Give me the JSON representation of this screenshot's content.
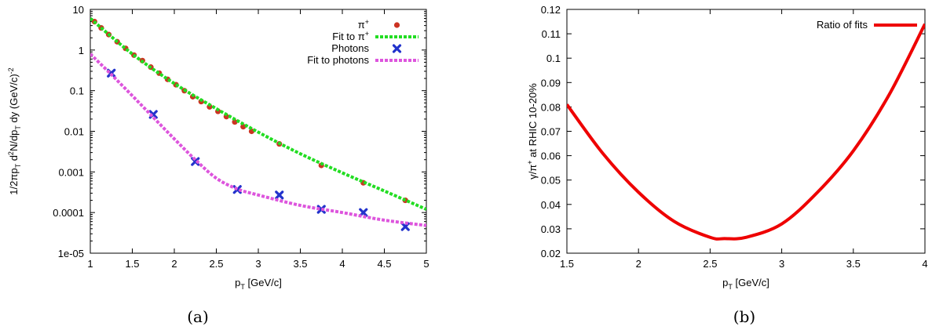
{
  "chart_data": [
    {
      "type": "scatter",
      "caption": "(a)",
      "xlabel": "p_T [GeV/c]",
      "ylabel": "1/2πp_T d^2N/dp_T dy (GeV/c)^-2",
      "xlim": [
        1,
        5
      ],
      "ylim": [
        1e-05,
        10
      ],
      "ylog": true,
      "grid": false,
      "legend_position": "top-right",
      "xticks": [
        1,
        1.5,
        2,
        2.5,
        3,
        3.5,
        4,
        4.5,
        5
      ],
      "xtick_labels": [
        "1",
        "1.5",
        "2",
        "2.5",
        "3",
        "3.5",
        "4",
        "4.5",
        "5"
      ],
      "yticks": [
        1e-05,
        0.0001,
        0.001,
        0.01,
        0.1,
        1,
        10
      ],
      "ytick_labels": [
        "1e-05",
        "0.0001",
        "0.001",
        "0.01",
        "0.1",
        "1",
        "10"
      ],
      "series": [
        {
          "name": "π+",
          "kind": "points",
          "marker": "circle",
          "color": "#cc3322",
          "x": [
            1.05,
            1.13,
            1.22,
            1.32,
            1.42,
            1.52,
            1.62,
            1.72,
            1.82,
            1.92,
            2.02,
            2.12,
            2.22,
            2.32,
            2.42,
            2.52,
            2.62,
            2.72,
            2.82,
            2.92,
            3.25,
            3.75,
            4.25,
            4.75
          ],
          "y": [
            5.0,
            3.5,
            2.4,
            1.6,
            1.1,
            0.75,
            0.55,
            0.38,
            0.27,
            0.19,
            0.14,
            0.1,
            0.071,
            0.054,
            0.04,
            0.031,
            0.023,
            0.017,
            0.013,
            0.01,
            0.0049,
            0.00145,
            0.00054,
            0.0002
          ]
        },
        {
          "name": "Fit to π+",
          "kind": "line",
          "dash": "dotted",
          "color": "#22dd22",
          "x": [
            1.0,
            1.5,
            2.0,
            2.5,
            3.0,
            3.5,
            4.0,
            4.5,
            5.0
          ],
          "y": [
            6.0,
            0.8,
            0.15,
            0.036,
            0.0095,
            0.0028,
            0.00095,
            0.00034,
            0.00012
          ]
        },
        {
          "name": "Photons",
          "kind": "points",
          "marker": "cross",
          "color": "#2233cc",
          "x": [
            1.25,
            1.75,
            2.25,
            2.75,
            3.25,
            3.75,
            4.25,
            4.75
          ],
          "y": [
            0.27,
            0.026,
            0.0018,
            0.00037,
            0.00027,
            0.00012,
            0.0001,
            4.5e-05
          ]
        },
        {
          "name": "Fit to photons",
          "kind": "line",
          "dash": "dotted",
          "color": "#dd55dd",
          "x": [
            1.0,
            1.25,
            1.5,
            1.75,
            2.0,
            2.25,
            2.5,
            2.75,
            3.0,
            3.5,
            4.0,
            4.5,
            5.0
          ],
          "y": [
            0.8,
            0.25,
            0.075,
            0.022,
            0.0065,
            0.002,
            0.0007,
            0.00038,
            0.00027,
            0.00015,
            0.0001,
            6.5e-05,
            4.8e-05
          ]
        }
      ]
    },
    {
      "type": "line",
      "caption": "(b)",
      "xlabel": "p_T [GeV/c]",
      "ylabel": "γ/π^+ at RHIC 10-20%",
      "xlim": [
        1.5,
        4
      ],
      "ylim": [
        0.02,
        0.12
      ],
      "ylog": false,
      "grid": false,
      "legend_position": "top-right",
      "xticks": [
        1.5,
        2,
        2.5,
        3,
        3.5,
        4
      ],
      "xtick_labels": [
        "1.5",
        "2",
        "2.5",
        "3",
        "3.5",
        "4"
      ],
      "yticks": [
        0.02,
        0.03,
        0.04,
        0.05,
        0.06,
        0.07,
        0.08,
        0.09,
        0.1,
        0.11,
        0.12
      ],
      "ytick_labels": [
        "0.02",
        "0.03",
        "0.04",
        "0.05",
        "0.06",
        "0.07",
        "0.08",
        "0.09",
        "0.1",
        "0.11",
        "0.12"
      ],
      "series": [
        {
          "name": "Ratio of fits",
          "kind": "line",
          "dash": "solid",
          "color": "#ee0000",
          "x": [
            1.5,
            1.75,
            2.0,
            2.25,
            2.5,
            2.6,
            2.75,
            3.0,
            3.25,
            3.5,
            3.75,
            4.0
          ],
          "y": [
            0.081,
            0.061,
            0.045,
            0.033,
            0.0265,
            0.026,
            0.0265,
            0.032,
            0.045,
            0.062,
            0.085,
            0.114
          ]
        }
      ]
    }
  ]
}
